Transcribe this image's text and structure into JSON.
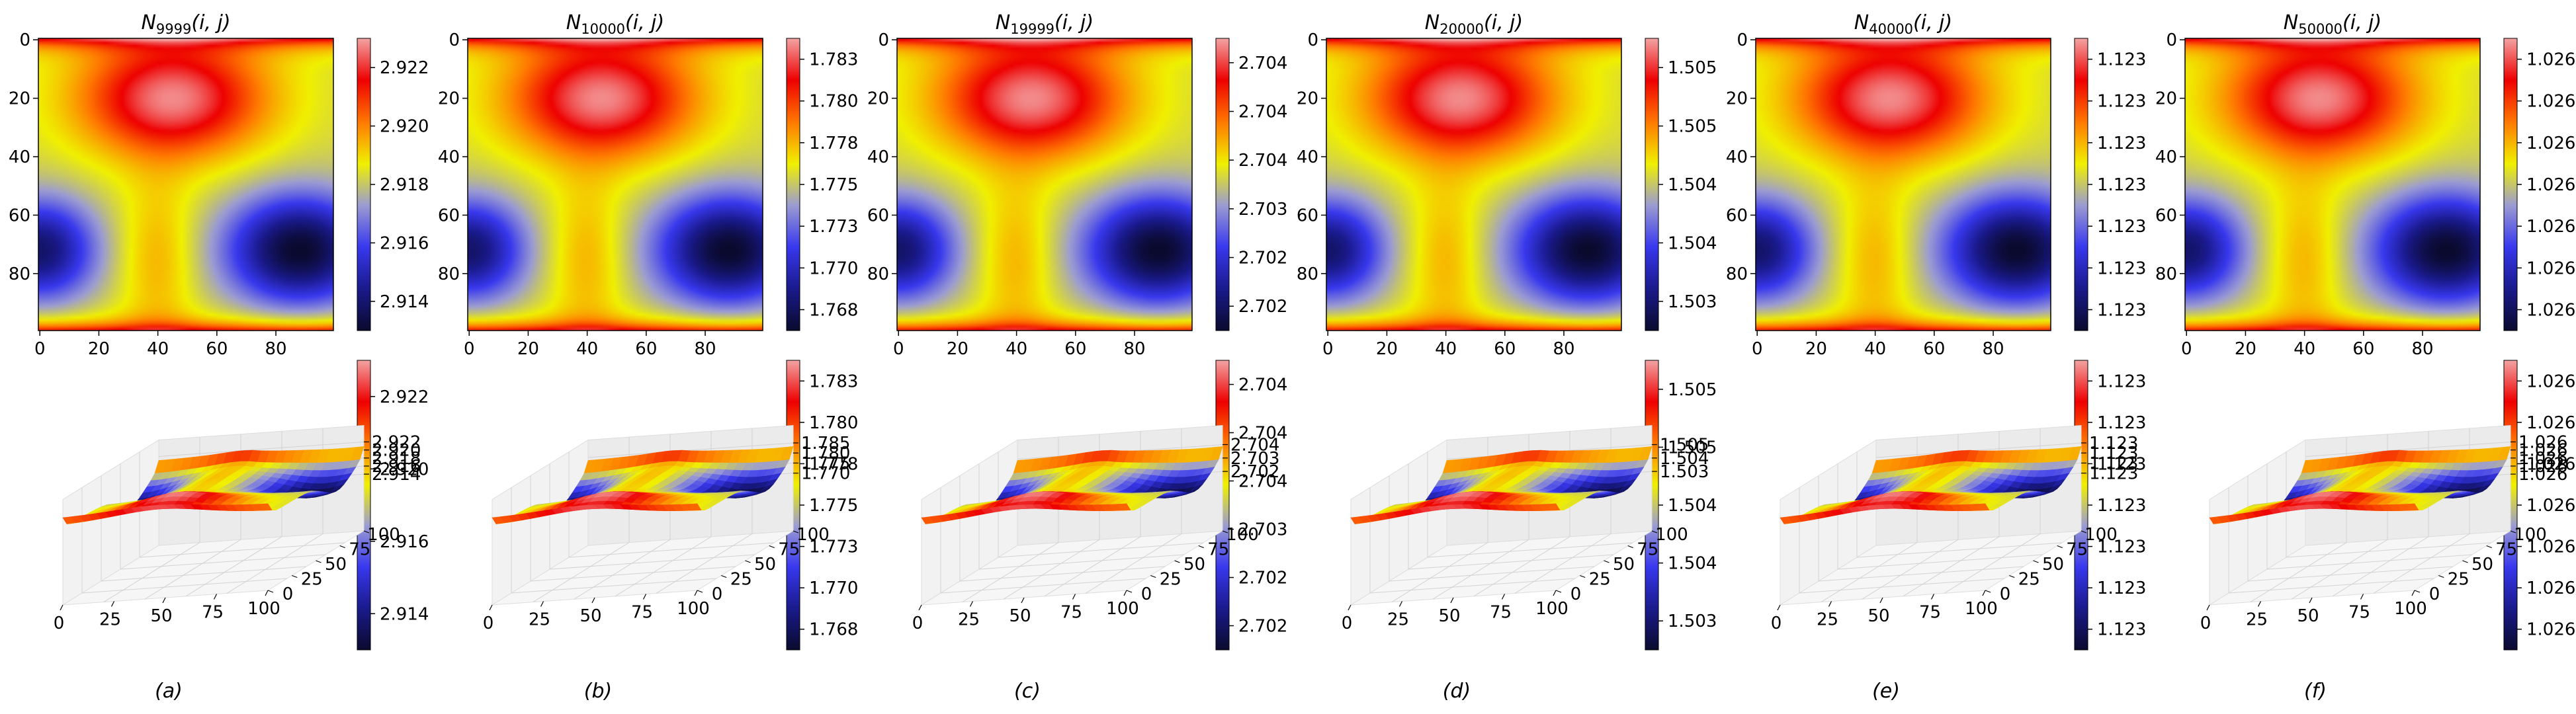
{
  "colors": {
    "colormap": [
      "#0a0a2e",
      "#1a1a8c",
      "#3838ee",
      "#9c9cd2",
      "#f0f000",
      "#ff7800",
      "#ee0000",
      "#f3a3a3"
    ],
    "axis": "#000000",
    "pane_back": "#ebebeb",
    "pane_side": "#f2f2f2",
    "pane_floor": "#f6f6f6"
  },
  "panels": [
    {
      "id": "a",
      "title_main": "N",
      "title_sub": "9999",
      "title_args": "(i, j)",
      "letter": "(a)",
      "cbar_top_ticks": [
        "2.922",
        "2.920",
        "2.918",
        "2.916",
        "2.914"
      ],
      "cbar_bottom_ticks": [
        "2.922",
        "2.920",
        "2.916",
        "2.914"
      ],
      "z_ticks": [
        "2.922",
        "2.920",
        "2.918",
        "2.916",
        "2.914"
      ]
    },
    {
      "id": "b",
      "title_main": "N",
      "title_sub": "10000",
      "title_args": "(i, j)",
      "letter": "(b)",
      "cbar_top_ticks": [
        "1.783",
        "1.780",
        "1.778",
        "1.775",
        "1.773",
        "1.770",
        "1.768"
      ],
      "cbar_bottom_ticks": [
        "1.783",
        "1.780",
        "1.778",
        "1.775",
        "1.773",
        "1.770",
        "1.768"
      ],
      "z_ticks": [
        "1.785",
        "1.780",
        "1.775",
        "1.770"
      ]
    },
    {
      "id": "c",
      "title_main": "N",
      "title_sub": "19999",
      "title_args": "(i, j)",
      "letter": "(c)",
      "cbar_top_ticks": [
        "2.704",
        "2.704",
        "2.704",
        "2.703",
        "2.702",
        "2.702"
      ],
      "cbar_bottom_ticks": [
        "2.704",
        "2.704",
        "2.704",
        "2.703",
        "2.702",
        "2.702"
      ],
      "z_ticks": [
        "2.704",
        "2.703",
        "2.702"
      ]
    },
    {
      "id": "d",
      "title_main": "N",
      "title_sub": "20000",
      "title_args": "(i, j)",
      "letter": "(d)",
      "cbar_top_ticks": [
        "1.505",
        "1.505",
        "1.504",
        "1.504",
        "1.503"
      ],
      "cbar_bottom_ticks": [
        "1.505",
        "1.505",
        "1.504",
        "1.504",
        "1.503"
      ],
      "z_ticks": [
        "1.505",
        "1.504",
        "1.503"
      ]
    },
    {
      "id": "e",
      "title_main": "N",
      "title_sub": "40000",
      "title_args": "(i, j)",
      "letter": "(e)",
      "cbar_top_ticks": [
        "1.123",
        "1.123",
        "1.123",
        "1.123",
        "1.123",
        "1.123",
        "1.123"
      ],
      "cbar_bottom_ticks": [
        "1.123",
        "1.123",
        "1.123",
        "1.123",
        "1.123",
        "1.123",
        "1.123"
      ],
      "z_ticks": [
        "1.123",
        "1.123",
        "1.123",
        "1.123"
      ]
    },
    {
      "id": "f",
      "title_main": "N",
      "title_sub": "50000",
      "title_args": "(i, j)",
      "letter": "(f)",
      "cbar_top_ticks": [
        "1.026",
        "1.026",
        "1.026",
        "1.026",
        "1.026",
        "1.026",
        "1.026"
      ],
      "cbar_bottom_ticks": [
        "1.026",
        "1.026",
        "1.026",
        "1.026",
        "1.026",
        "1.026",
        "1.026"
      ],
      "z_ticks": [
        "1.026",
        "1.026",
        "1.026",
        "1.026",
        "1.026"
      ]
    }
  ],
  "chart_data": {
    "type": "heatmap",
    "title": "",
    "subplot_titles": [
      "N9999(i, j)",
      "N10000(i, j)",
      "N19999(i, j)",
      "N20000(i, j)",
      "N40000(i, j)",
      "N50000(i, j)"
    ],
    "grid_size": [
      100,
      100
    ],
    "heatmap_x_ticks": [
      0,
      20,
      40,
      60,
      80
    ],
    "heatmap_y_ticks": [
      0,
      20,
      40,
      60,
      80
    ],
    "surface_x_ticks": [
      0,
      25,
      50,
      75,
      100
    ],
    "surface_y_ticks": [
      0,
      25,
      50,
      75,
      100
    ],
    "features": {
      "maximum": {
        "i": 45,
        "j": 20
      },
      "minima": [
        {
          "i": 0,
          "j": 72
        },
        {
          "i": 88,
          "j": 72
        }
      ],
      "saddle": {
        "i": 40,
        "j": 75
      }
    },
    "value_ranges": [
      {
        "panel": "a",
        "vmin": 2.9132,
        "vmax": 2.9232
      },
      {
        "panel": "b",
        "vmin": 1.7665,
        "vmax": 1.7845
      },
      {
        "panel": "c",
        "vmin": 2.7018,
        "vmax": 2.7046
      },
      {
        "panel": "d",
        "vmin": 1.5027,
        "vmax": 1.5054
      },
      {
        "panel": "e",
        "vmin": 1.12275,
        "vmax": 1.12325
      },
      {
        "panel": "f",
        "vmin": 1.02575,
        "vmax": 1.02625
      }
    ]
  }
}
